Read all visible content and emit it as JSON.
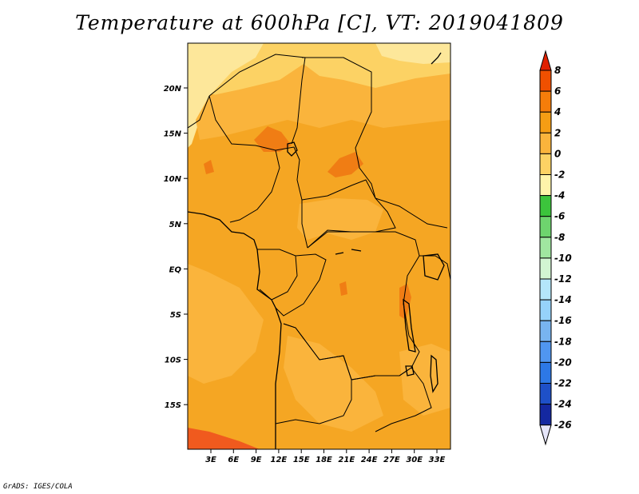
{
  "title": "Temperature at 600hPa [C], VT: 2019041809",
  "credit": "GrADS: IGES/COLA",
  "map": {
    "lat_labels": [
      "20N",
      "15N",
      "10N",
      "5N",
      "EQ",
      "5S",
      "10S",
      "15S"
    ],
    "lon_labels": [
      "3E",
      "6E",
      "9E",
      "12E",
      "15E",
      "18E",
      "21E",
      "24E",
      "27E",
      "30E",
      "33E"
    ]
  },
  "colorbar": {
    "levels": [
      "8",
      "6",
      "4",
      "2",
      "0",
      "-2",
      "-4",
      "-6",
      "-8",
      "-10",
      "-12",
      "-14",
      "-16",
      "-18",
      "-20",
      "-22",
      "-24",
      "-26"
    ],
    "colors": [
      "#e02000",
      "#f05000",
      "#f57d0a",
      "#f59d14",
      "#fab43c",
      "#fcd264",
      "#fff4aa",
      "#3cc43c",
      "#6ed46e",
      "#a0e6a0",
      "#d2f5d2",
      "#b4e6fa",
      "#96d2fa",
      "#78b4f0",
      "#5096f0",
      "#2d78e6",
      "#1e50c8",
      "#1428a0",
      "#0a0a6e",
      "#e6e6fa"
    ]
  },
  "field_colors": {
    "warm": "#f5a623",
    "warmer": "#f07d14",
    "mild": "#fab43c",
    "cool": "#fcd264",
    "cold": "#fde79a",
    "hot": "#f05a1e"
  }
}
